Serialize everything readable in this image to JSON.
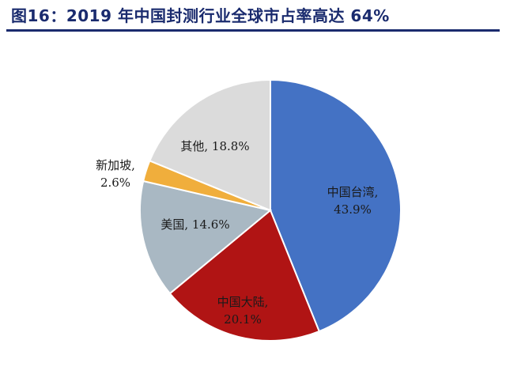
{
  "title": "图16：2019 年中国封测行业全球市占率高达 64%",
  "chart_data": {
    "type": "pie",
    "title": "图16：2019 年中国封测行业全球市占率高达 64%",
    "slices": [
      {
        "label": "中国台湾",
        "value": 43.9,
        "display": "43.9%",
        "color": "#4472C4"
      },
      {
        "label": "中国大陆",
        "value": 20.1,
        "display": "20.1%",
        "color": "#B01414"
      },
      {
        "label": "美国",
        "value": 14.6,
        "display": "14.6%",
        "color": "#A9B8C3"
      },
      {
        "label": "新加坡",
        "value": 2.6,
        "display": "2.6%",
        "color": "#F0AE3C"
      },
      {
        "label": "其他",
        "value": 18.8,
        "display": "18.8%",
        "color": "#DBDBDB"
      }
    ],
    "start_angle": "12 o'clock",
    "direction": "clockwise",
    "legend": "none"
  }
}
